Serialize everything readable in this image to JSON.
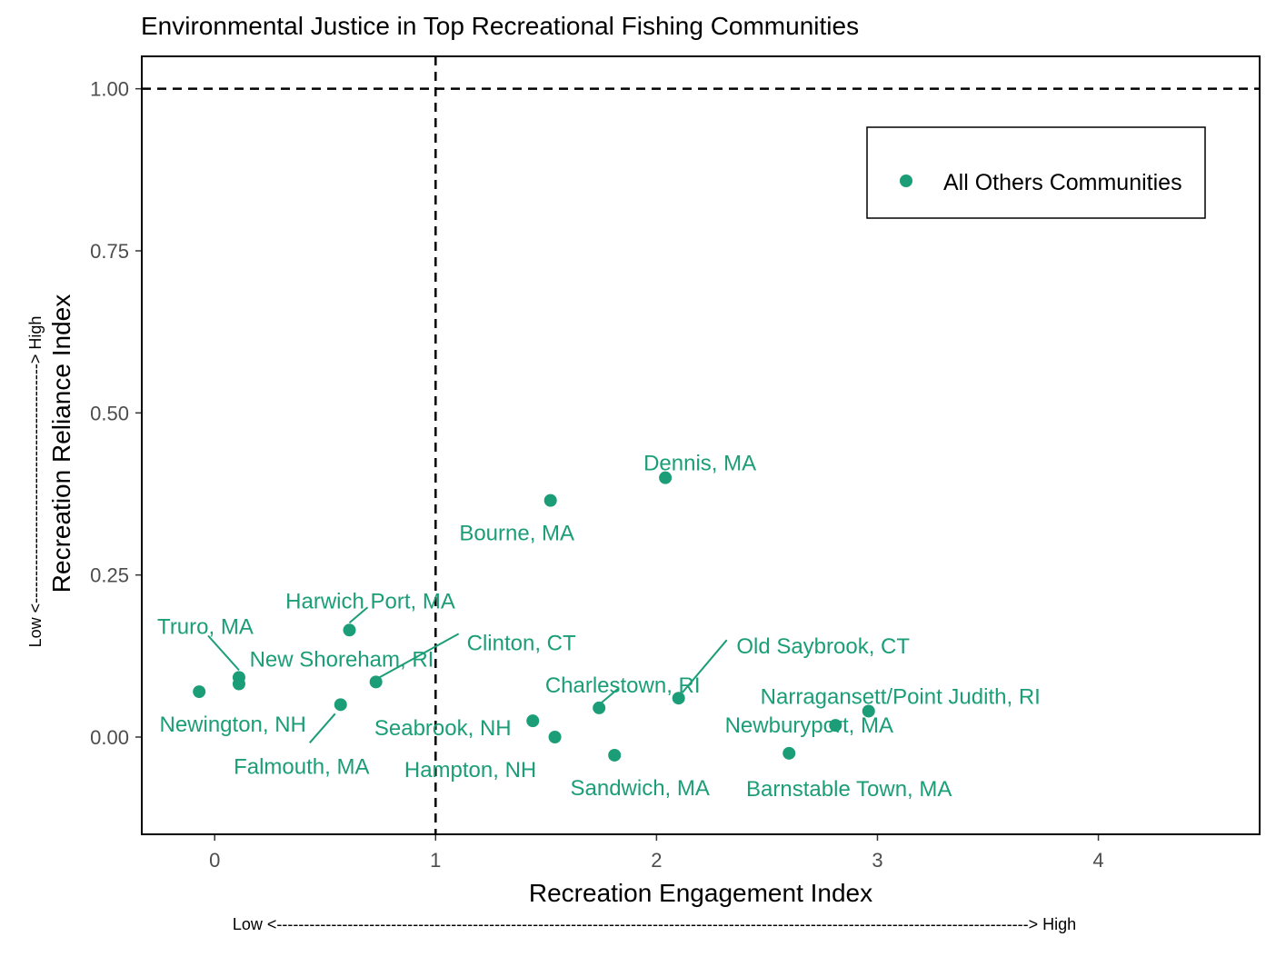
{
  "chart_data": {
    "type": "scatter",
    "title": "Environmental Justice in Top Recreational Fishing Communities",
    "xlabel": "Recreation Engagement Index",
    "ylabel": "Recreation Reliance Index",
    "x_arrow_label": "Low <------------------------------------------------------------------------------------------------------------------------------------------> High",
    "y_arrow_label": "Low <--------------------------------------------> High",
    "xlim": [
      -0.33,
      4.73
    ],
    "ylim": [
      -0.15,
      1.05
    ],
    "x_ticks": [
      0,
      1,
      2,
      3,
      4
    ],
    "x_tick_labels": [
      "0",
      "1",
      "2",
      "3",
      "4"
    ],
    "y_ticks": [
      0.0,
      0.25,
      0.5,
      0.75,
      1.0
    ],
    "y_tick_labels": [
      "0.00",
      "0.25",
      "0.50",
      "0.75",
      "1.00"
    ],
    "reference_lines": {
      "vertical_x": 1,
      "horizontal_y": 1
    },
    "grid": false,
    "legend_position": "top-right",
    "series": [
      {
        "name": "All Others Communities",
        "color": "#1b9e77",
        "points": [
          {
            "label": "Dennis, MA",
            "x": 2.04,
            "y": 0.4
          },
          {
            "label": "Bourne, MA",
            "x": 1.52,
            "y": 0.365
          },
          {
            "label": "Harwich Port, MA",
            "x": 0.61,
            "y": 0.165
          },
          {
            "label": "Truro, MA",
            "x": 0.11,
            "y": 0.092
          },
          {
            "label": "New Shoreham, RI",
            "x": 0.11,
            "y": 0.082
          },
          {
            "label": "Clinton, CT",
            "x": 0.73,
            "y": 0.085
          },
          {
            "label": "Newington, NH",
            "x": -0.07,
            "y": 0.07
          },
          {
            "label": "Falmouth, MA",
            "x": 0.57,
            "y": 0.05
          },
          {
            "label": "Seabrook, NH",
            "x": 1.44,
            "y": 0.025
          },
          {
            "label": "Hampton, NH",
            "x": 1.54,
            "y": 0.0
          },
          {
            "label": "Charlestown, RI",
            "x": 1.74,
            "y": 0.045
          },
          {
            "label": "Sandwich, MA",
            "x": 1.81,
            "y": -0.028
          },
          {
            "label": "Old Saybrook, CT",
            "x": 2.1,
            "y": 0.06
          },
          {
            "label": "Narragansett/Point Judith, RI",
            "x": 2.96,
            "y": 0.04
          },
          {
            "label": "Newburyport, MA",
            "x": 2.81,
            "y": 0.018
          },
          {
            "label": "Barnstable Town, MA",
            "x": 2.6,
            "y": -0.025
          }
        ]
      }
    ]
  }
}
